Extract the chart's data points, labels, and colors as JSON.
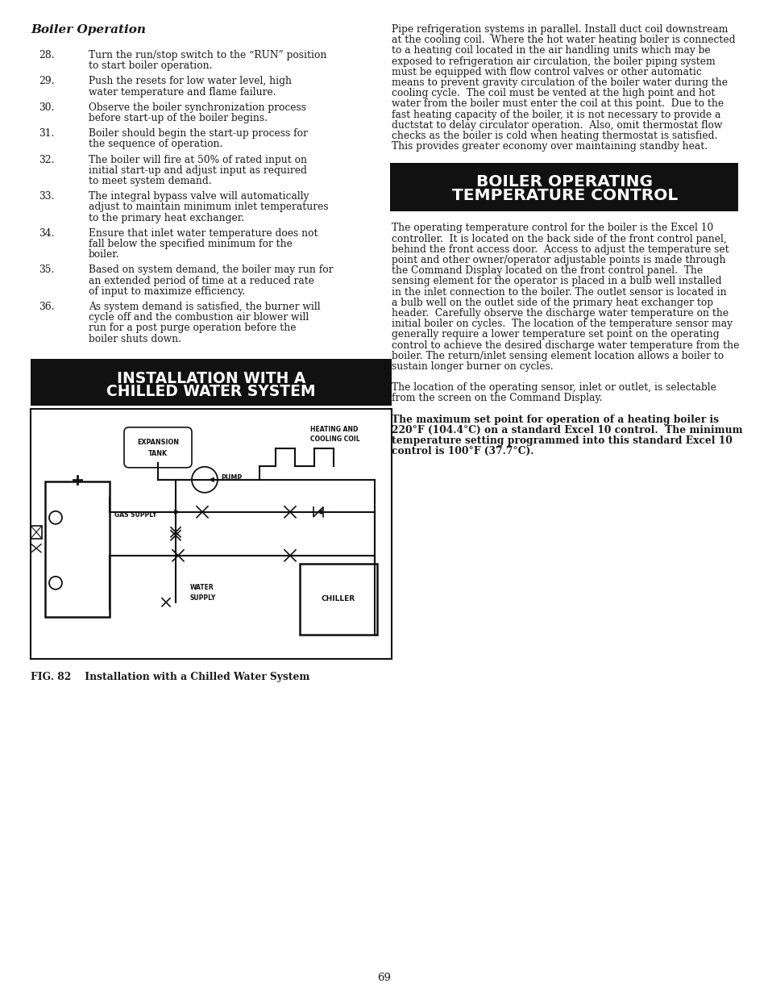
{
  "page_bg": "#ffffff",
  "title_bg": "#111111",
  "title_fg": "#ffffff",
  "body_fg": "#1a1a1a",
  "left_col": {
    "section_title": "Boiler Operation",
    "items": [
      {
        "num": "28.",
        "text": "Turn the run/stop switch to the “RUN” position to start boiler operation."
      },
      {
        "num": "29.",
        "text": "Push the resets for low water level, high water temperature and flame failure."
      },
      {
        "num": "30.",
        "text": "Observe the boiler synchronization process before start-up of the boiler begins."
      },
      {
        "num": "31.",
        "text": "Boiler should begin the start-up process for the sequence of operation."
      },
      {
        "num": "32.",
        "text": "The boiler will fire at 50% of rated input on initial start-up and adjust input as required to meet system demand."
      },
      {
        "num": "33.",
        "text": "The integral bypass valve will automatically adjust to maintain minimum inlet temperatures to the primary heat exchanger."
      },
      {
        "num": "34.",
        "text": "Ensure that inlet water temperature does not fall below the specified minimum for the boiler."
      },
      {
        "num": "35.",
        "text": "Based on system demand, the boiler may run for an extended period of time at a reduced rate of input to maximize efficiency."
      },
      {
        "num": "36.",
        "text": "As system demand is satisfied, the burner will cycle off and the combustion air blower will run for a post purge operation before the boiler shuts down."
      }
    ],
    "chilled_header_line1": "INSTALLATION WITH A",
    "chilled_header_line2": "CHILLED WATER SYSTEM",
    "fig_caption": "FIG. 82    Installation with a Chilled Water System"
  },
  "right_col": {
    "intro_lines": [
      "Pipe refrigeration systems in parallel. Install duct coil downstream",
      "at the cooling coil.  Where the hot water heating boiler is connected",
      "to a heating coil located in the air handling units which may be",
      "exposed to refrigeration air circulation, the boiler piping system",
      "must be equipped with flow control valves or other automatic",
      "means to prevent gravity circulation of the boiler water during the",
      "cooling cycle.  The coil must be vented at the high point and hot",
      "water from the boiler must enter the coil at this point.  Due to the",
      "fast heating capacity of the boiler, it is not necessary to provide a",
      "ductstat to delay circulator operation.  Also, omit thermostat flow",
      "checks as the boiler is cold when heating thermostat is satisfied.",
      "This provides greater economy over maintaining standby heat."
    ],
    "boiler_header_line1": "BOILER OPERATING",
    "boiler_header_line2": "TEMPERATURE CONTROL",
    "boiler_text1_lines": [
      "The operating temperature control for the boiler is the Excel 10",
      "controller.  It is located on the back side of the front control panel,",
      "behind the front access door.  Access to adjust the temperature set",
      "point and other owner/operator adjustable points is made through",
      "the Command Display located on the front control panel.  The",
      "sensing element for the operator is placed in a bulb well installed",
      "in the inlet connection to the boiler. The outlet sensor is located in",
      "a bulb well on the outlet side of the primary heat exchanger top",
      "header.  Carefully observe the discharge water temperature on the",
      "initial boiler on cycles.  The location of the temperature sensor may",
      "generally require a lower temperature set point on the operating",
      "control to achieve the desired discharge water temperature from the",
      "boiler. The return/inlet sensing element location allows a boiler to",
      "sustain longer burner on cycles."
    ],
    "boiler_text2_lines": [
      "The location of the operating sensor, inlet or outlet, is selectable",
      "from the screen on the Command Display."
    ],
    "boiler_text3_lines": [
      "The maximum set point for operation of a heating boiler is",
      "220°F (104.4°C) on a standard Excel 10 control.  The minimum",
      "temperature setting programmed into this standard Excel 10",
      "control is 100°F (37.7°C)."
    ]
  },
  "page_number": "69"
}
